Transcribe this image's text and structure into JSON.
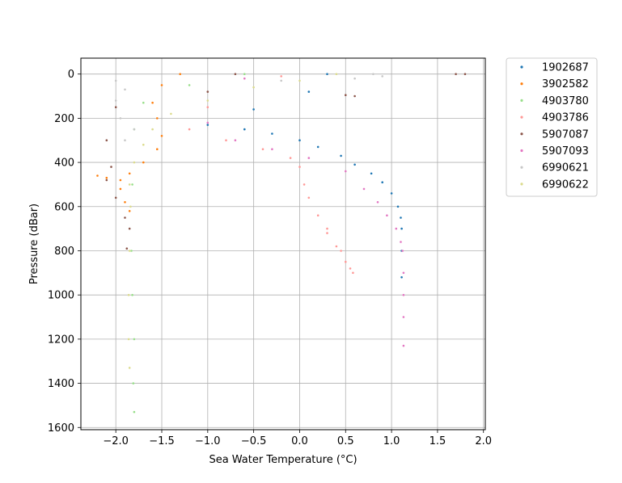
{
  "chart_data": {
    "type": "scatter",
    "title": "",
    "xlabel": "Sea Water Temperature (°C)",
    "ylabel": "Pressure (dBar)",
    "xlim": [
      -2.38,
      2.02
    ],
    "ylim": [
      1610,
      -72
    ],
    "y_inverted": true,
    "grid": true,
    "legend_placement": "outside-right-top",
    "xticks": [
      -2.0,
      -1.5,
      -1.0,
      -0.5,
      0.0,
      0.5,
      1.0,
      1.5,
      2.0
    ],
    "xtick_labels": [
      "−2.0",
      "−1.5",
      "−1.0",
      "−0.5",
      "0.0",
      "0.5",
      "1.0",
      "1.5",
      "2.0"
    ],
    "yticks": [
      0,
      200,
      400,
      600,
      800,
      1000,
      1200,
      1400,
      1600
    ],
    "ytick_labels": [
      "0",
      "200",
      "400",
      "600",
      "800",
      "1000",
      "1200",
      "1400",
      "1600"
    ],
    "series": [
      {
        "name": "1902687",
        "color": "#1f77b4",
        "points": [
          [
            0.3,
            0
          ],
          [
            0.1,
            80
          ],
          [
            -0.5,
            160
          ],
          [
            -1.0,
            230
          ],
          [
            -0.6,
            250
          ],
          [
            -0.3,
            270
          ],
          [
            0.0,
            300
          ],
          [
            0.2,
            330
          ],
          [
            0.45,
            370
          ],
          [
            0.6,
            410
          ],
          [
            0.78,
            450
          ],
          [
            0.9,
            490
          ],
          [
            1.0,
            540
          ],
          [
            1.07,
            600
          ],
          [
            1.1,
            650
          ],
          [
            1.11,
            700
          ],
          [
            1.11,
            800
          ],
          [
            1.11,
            920
          ]
        ]
      },
      {
        "name": "3902582",
        "color": "#ff7f0e",
        "points": [
          [
            -1.3,
            0
          ],
          [
            -1.5,
            50
          ],
          [
            -1.6,
            130
          ],
          [
            -1.55,
            200
          ],
          [
            -1.5,
            280
          ],
          [
            -1.55,
            340
          ],
          [
            -1.7,
            400
          ],
          [
            -1.85,
            450
          ],
          [
            -1.95,
            480
          ],
          [
            -2.1,
            470
          ],
          [
            -2.2,
            460
          ],
          [
            -1.95,
            520
          ],
          [
            -1.9,
            580
          ],
          [
            -1.85,
            620
          ]
        ]
      },
      {
        "name": "4903780",
        "color": "#98df8a",
        "points": [
          [
            -0.6,
            0
          ],
          [
            -1.2,
            50
          ],
          [
            -1.7,
            130
          ],
          [
            -1.8,
            250
          ],
          [
            -1.82,
            500
          ],
          [
            -1.83,
            800
          ],
          [
            -1.82,
            1000
          ],
          [
            -1.8,
            1200
          ],
          [
            -1.81,
            1400
          ],
          [
            -1.8,
            1530
          ]
        ]
      },
      {
        "name": "4903786",
        "color": "#ff9896",
        "points": [
          [
            -0.2,
            10
          ],
          [
            -1.0,
            150
          ],
          [
            -1.2,
            250
          ],
          [
            -0.8,
            300
          ],
          [
            -0.4,
            340
          ],
          [
            -0.1,
            380
          ],
          [
            0.0,
            420
          ],
          [
            0.05,
            500
          ],
          [
            0.1,
            560
          ],
          [
            0.2,
            640
          ],
          [
            0.3,
            720
          ],
          [
            0.45,
            800
          ],
          [
            0.55,
            880
          ],
          [
            0.58,
            900
          ],
          [
            0.5,
            850
          ],
          [
            0.4,
            780
          ],
          [
            0.3,
            700
          ]
        ]
      },
      {
        "name": "5907087",
        "color": "#8c564b",
        "points": [
          [
            -0.7,
            0
          ],
          [
            -1.0,
            80
          ],
          [
            -2.0,
            150
          ],
          [
            -2.1,
            300
          ],
          [
            -2.05,
            420
          ],
          [
            -2.1,
            480
          ],
          [
            -2.0,
            560
          ],
          [
            -1.9,
            650
          ],
          [
            -1.85,
            700
          ],
          [
            -1.88,
            790
          ],
          [
            1.7,
            0
          ],
          [
            1.8,
            0
          ],
          [
            0.6,
            100
          ],
          [
            0.5,
            95
          ]
        ]
      },
      {
        "name": "5907093",
        "color": "#e377c2",
        "points": [
          [
            -0.6,
            20
          ],
          [
            -1.0,
            220
          ],
          [
            -0.7,
            300
          ],
          [
            -0.3,
            340
          ],
          [
            0.1,
            380
          ],
          [
            0.5,
            440
          ],
          [
            0.7,
            520
          ],
          [
            0.85,
            580
          ],
          [
            0.95,
            640
          ],
          [
            1.05,
            700
          ],
          [
            1.1,
            760
          ],
          [
            1.12,
            800
          ],
          [
            1.13,
            900
          ],
          [
            1.13,
            1000
          ],
          [
            1.13,
            1100
          ],
          [
            1.13,
            1230
          ]
        ]
      },
      {
        "name": "6990621",
        "color": "#c7c7c7",
        "points": [
          [
            -2.0,
            30
          ],
          [
            -1.9,
            70
          ],
          [
            -2.0,
            120
          ],
          [
            -1.95,
            200
          ],
          [
            -1.8,
            250
          ],
          [
            -1.9,
            300
          ],
          [
            0.8,
            0
          ],
          [
            0.9,
            10
          ],
          [
            0.6,
            20
          ],
          [
            -0.2,
            30
          ]
        ]
      },
      {
        "name": "6990622",
        "color": "#dbdb8d",
        "points": [
          [
            0.4,
            0
          ],
          [
            0.0,
            30
          ],
          [
            -0.5,
            60
          ],
          [
            -1.0,
            120
          ],
          [
            -1.4,
            180
          ],
          [
            -1.6,
            250
          ],
          [
            -1.7,
            320
          ],
          [
            -1.8,
            400
          ],
          [
            -1.85,
            500
          ],
          [
            -1.84,
            600
          ],
          [
            -1.85,
            800
          ],
          [
            -1.86,
            1000
          ],
          [
            -1.86,
            1200
          ],
          [
            -1.85,
            1330
          ]
        ]
      }
    ]
  }
}
